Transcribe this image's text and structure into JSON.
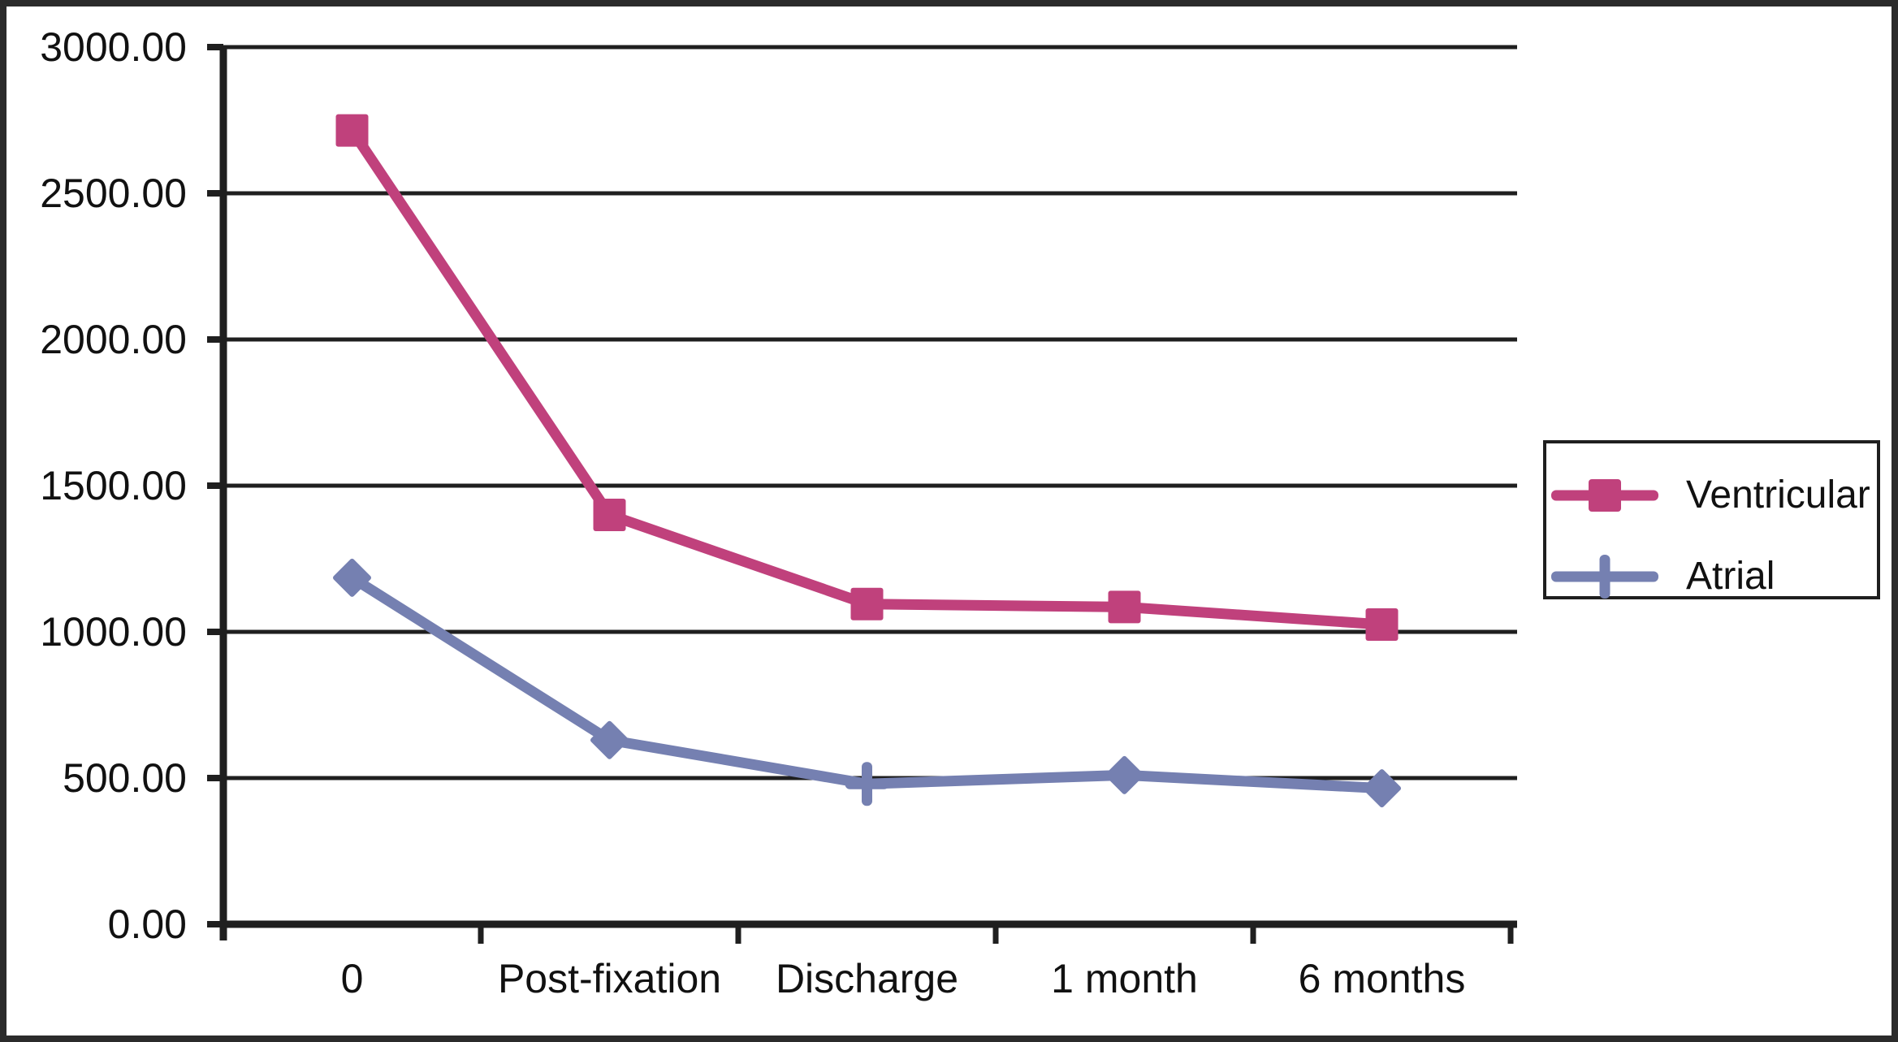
{
  "chart_data": {
    "type": "line",
    "categories": [
      "0",
      "Post-fixation",
      "Discharge",
      "1 month",
      "6 months"
    ],
    "series": [
      {
        "name": "Ventricular",
        "color": "#c0417c",
        "marker": "square",
        "markers_per_point": [
          "square",
          "square",
          "square",
          "square",
          "square"
        ],
        "values": [
          2715,
          1400,
          1095,
          1085,
          1025
        ]
      },
      {
        "name": "Atrial",
        "color": "#7580b1",
        "marker": "diamond",
        "legend_marker": "plus",
        "markers_per_point": [
          "diamond",
          "diamond",
          "plus",
          "diamond",
          "diamond"
        ],
        "values": [
          1185,
          630,
          480,
          510,
          465
        ]
      }
    ],
    "title": "",
    "xlabel": "",
    "ylabel": "",
    "ylim": [
      0,
      3000
    ],
    "yticks": [
      {
        "value": 0,
        "label": "0.00"
      },
      {
        "value": 500,
        "label": "500.00"
      },
      {
        "value": 1000,
        "label": "1000.00"
      },
      {
        "value": 1500,
        "label": "1500.00"
      },
      {
        "value": 2000,
        "label": "2000.00"
      },
      {
        "value": 2500,
        "label": "2500.00"
      },
      {
        "value": 3000,
        "label": "3000.00"
      }
    ],
    "grid": true,
    "legend_position": "right"
  },
  "colors": {
    "axis": "#1f1f1f",
    "frame": "#2b2b2b",
    "background": "#ffffff"
  }
}
